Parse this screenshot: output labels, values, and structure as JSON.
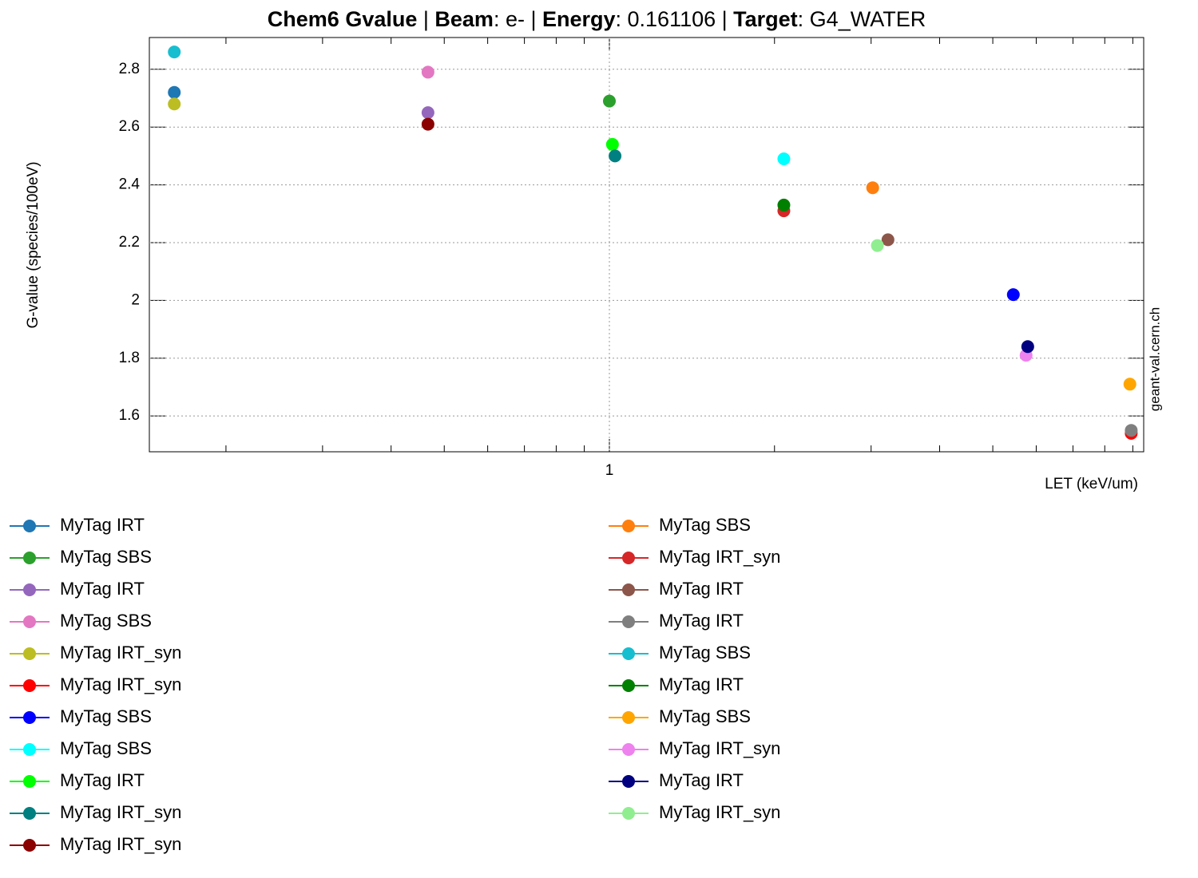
{
  "chart_data": {
    "type": "scatter",
    "title": [
      "Chem6 Gvalue",
      "  | ",
      "Beam",
      ": e- | ",
      "Energy",
      ": 0.161106 |  ",
      "Target",
      ": G4_WATER"
    ],
    "xlabel": "LET (keV/um)",
    "ylabel": "G-value (species/100eV)",
    "watermark": "geant-val.cern.ch",
    "xscale": "log",
    "xlim": [
      0.145,
      9.42
    ],
    "xticks": [
      1
    ],
    "xminorticks": [
      0.2,
      0.3,
      0.4,
      0.5,
      0.6,
      0.7,
      0.8,
      0.9,
      2,
      3,
      4,
      5,
      6,
      7,
      8,
      9
    ],
    "ylim": [
      1.476,
      2.91
    ],
    "yticks": [
      1.6,
      1.8,
      2,
      2.2,
      2.4,
      2.6,
      2.8
    ],
    "grid": true,
    "series": [
      {
        "name": "MyTag IRT",
        "color": "#1f77b4",
        "x": [
          0.161
        ],
        "values": [
          2.72
        ]
      },
      {
        "name": "MyTag SBS",
        "color": "#2ca02c",
        "x": [
          1.0
        ],
        "values": [
          2.69
        ]
      },
      {
        "name": "MyTag IRT",
        "color": "#9467bd",
        "x": [
          0.467
        ],
        "values": [
          2.65
        ]
      },
      {
        "name": "MyTag SBS",
        "color": "#e377c2",
        "x": [
          0.467
        ],
        "values": [
          2.79
        ]
      },
      {
        "name": "MyTag IRT_syn",
        "color": "#bcbd22",
        "x": [
          0.161
        ],
        "values": [
          2.68
        ]
      },
      {
        "name": "MyTag IRT_syn",
        "color": "#ff0000",
        "x": [
          8.94
        ],
        "values": [
          1.54
        ]
      },
      {
        "name": "MyTag SBS",
        "color": "#0000ff",
        "x": [
          5.45
        ],
        "values": [
          2.02
        ]
      },
      {
        "name": "MyTag SBS",
        "color": "#00ffff",
        "x": [
          2.08
        ],
        "values": [
          2.49
        ]
      },
      {
        "name": "MyTag IRT",
        "color": "#00ff00",
        "x": [
          1.013
        ],
        "values": [
          2.54
        ]
      },
      {
        "name": "MyTag IRT_syn",
        "color": "#008080",
        "x": [
          1.024
        ],
        "values": [
          2.5
        ]
      },
      {
        "name": "MyTag IRT_syn",
        "color": "#8b0000",
        "x": [
          0.467
        ],
        "values": [
          2.61
        ]
      },
      {
        "name": "MyTag SBS",
        "color": "#ff7f0e",
        "x": [
          3.02
        ],
        "values": [
          2.39
        ]
      },
      {
        "name": "MyTag IRT_syn",
        "color": "#d62728",
        "x": [
          2.08
        ],
        "values": [
          2.31
        ]
      },
      {
        "name": "MyTag IRT",
        "color": "#8c564b",
        "x": [
          3.22
        ],
        "values": [
          2.21
        ]
      },
      {
        "name": "MyTag IRT",
        "color": "#7f7f7f",
        "x": [
          8.94
        ],
        "values": [
          1.55
        ]
      },
      {
        "name": "MyTag SBS",
        "color": "#17becf",
        "x": [
          0.161
        ],
        "values": [
          2.86
        ]
      },
      {
        "name": "MyTag IRT",
        "color": "#008000",
        "x": [
          2.08
        ],
        "values": [
          2.33
        ]
      },
      {
        "name": "MyTag SBS",
        "color": "#ffa500",
        "x": [
          8.89
        ],
        "values": [
          1.71
        ]
      },
      {
        "name": "MyTag IRT_syn",
        "color": "#ee82ee",
        "x": [
          5.75
        ],
        "values": [
          1.81
        ]
      },
      {
        "name": "MyTag IRT",
        "color": "#000080",
        "x": [
          5.79
        ],
        "values": [
          1.84
        ]
      },
      {
        "name": "MyTag IRT_syn",
        "color": "#90ee90",
        "x": [
          3.08
        ],
        "values": [
          2.19
        ]
      }
    ]
  }
}
